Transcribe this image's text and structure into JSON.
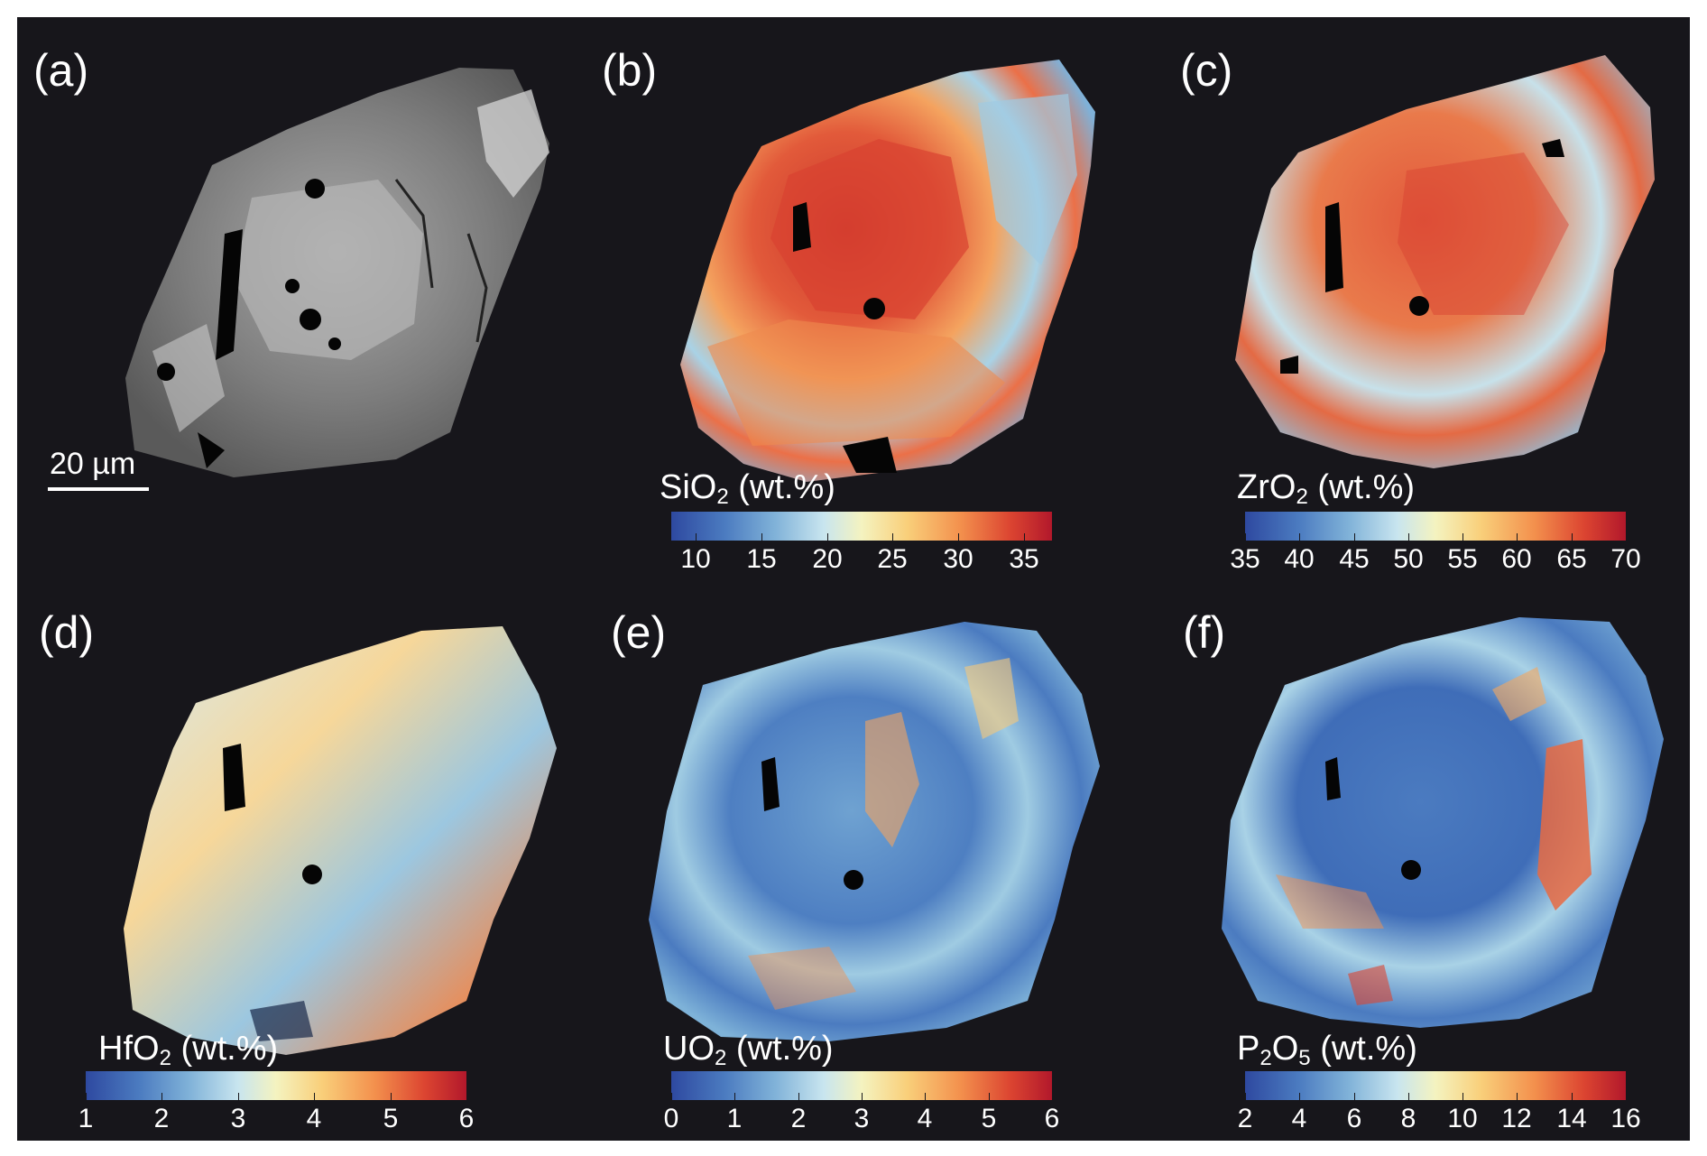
{
  "colors": {
    "background": "#17161b",
    "text": "#ffffff",
    "colormap": [
      "#2e49a0",
      "#4b7bc0",
      "#7fb1d8",
      "#c8e5ef",
      "#f4f3c0",
      "#f9cf7a",
      "#f3904d",
      "#dc4531",
      "#b2182b"
    ],
    "bse_gray": "#8a8a8a"
  },
  "scale_bar": {
    "label": "20 µm"
  },
  "panels": [
    {
      "label": "(a)",
      "type": "backscattered electron image"
    },
    {
      "label": "(b)",
      "oxide": "SiO",
      "subscript": "2",
      "unit": " (wt.%)",
      "ticks": [
        "10",
        "15",
        "20",
        "25",
        "30",
        "35"
      ]
    },
    {
      "label": "(c)",
      "oxide": "ZrO",
      "subscript": "2",
      "unit": " (wt.%)",
      "ticks": [
        "35",
        "40",
        "45",
        "50",
        "55",
        "60",
        "65",
        "70"
      ]
    },
    {
      "label": "(d)",
      "oxide": "HfO",
      "subscript": "2",
      "unit": " (wt.%)",
      "ticks": [
        "1",
        "2",
        "3",
        "4",
        "5",
        "6"
      ]
    },
    {
      "label": "(e)",
      "oxide": "UO",
      "subscript": "2",
      "unit": " (wt.%)",
      "ticks": [
        "0",
        "1",
        "2",
        "3",
        "4",
        "5",
        "6"
      ]
    },
    {
      "label": "(f)",
      "oxide": "P",
      "subscript": "2",
      "oxide2": "O",
      "subscript2": "5",
      "unit": " (wt.%)",
      "ticks": [
        "2",
        "4",
        "6",
        "8",
        "10",
        "12",
        "14",
        "16"
      ]
    }
  ]
}
